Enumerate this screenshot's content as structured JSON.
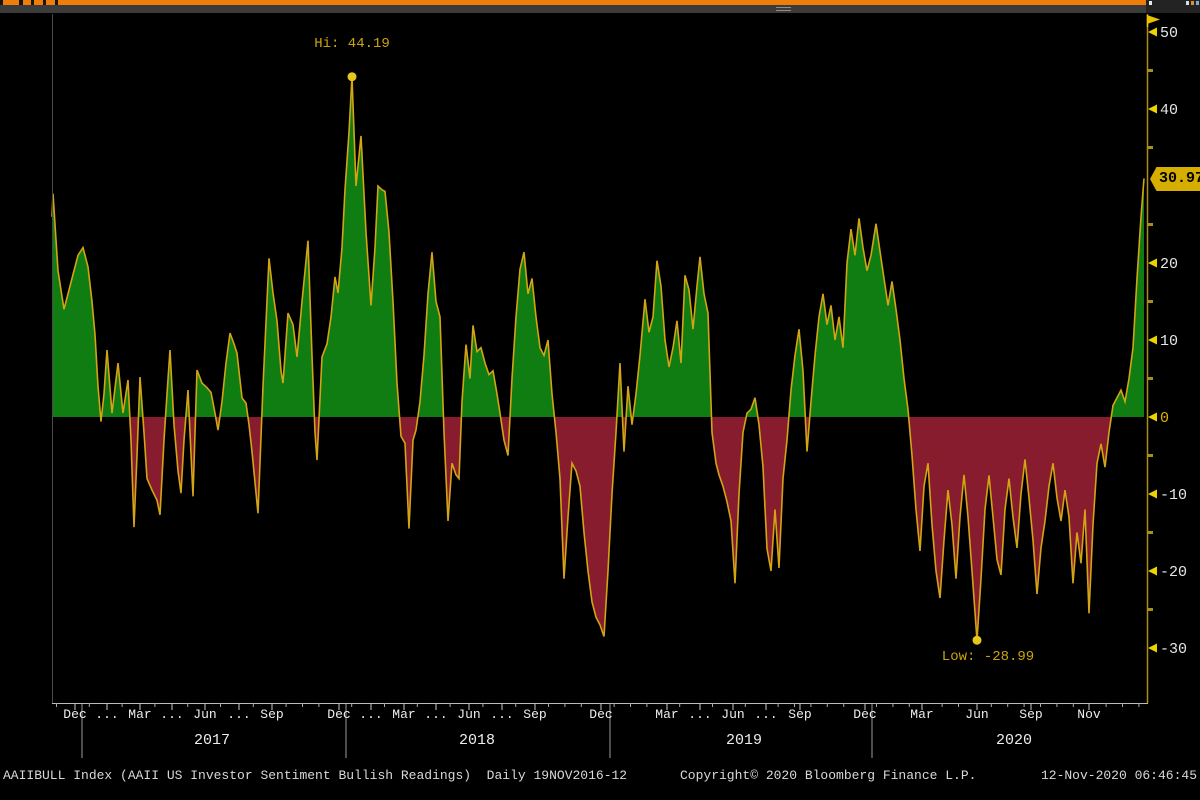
{
  "chart": {
    "hi_annotation": "Hi: 44.19",
    "low_annotation": "Low: -28.99",
    "last_value_tag": "30.97",
    "y_axis": {
      "major_ticks": [
        {
          "value": 50,
          "label": "50"
        },
        {
          "value": 40,
          "label": "40"
        },
        {
          "value": 20,
          "label": "20"
        },
        {
          "value": 10,
          "label": "10"
        },
        {
          "value": 0,
          "label": "0"
        },
        {
          "value": -10,
          "label": "-10"
        },
        {
          "value": -20,
          "label": "-20"
        },
        {
          "value": -30,
          "label": "-30"
        }
      ],
      "minor_tick_values": [
        45,
        35,
        25,
        15,
        5,
        -5,
        -15,
        -25
      ]
    },
    "x_axis": {
      "month_labels": [
        {
          "label": "Dec",
          "x": 75
        },
        {
          "label": "...",
          "x": 107
        },
        {
          "label": "Mar",
          "x": 140
        },
        {
          "label": "...",
          "x": 172
        },
        {
          "label": "Jun",
          "x": 205
        },
        {
          "label": "...",
          "x": 239
        },
        {
          "label": "Sep",
          "x": 272
        },
        {
          "label": "Dec",
          "x": 339
        },
        {
          "label": "...",
          "x": 371
        },
        {
          "label": "Mar",
          "x": 404
        },
        {
          "label": "...",
          "x": 436
        },
        {
          "label": "Jun",
          "x": 469
        },
        {
          "label": "...",
          "x": 502
        },
        {
          "label": "Sep",
          "x": 535
        },
        {
          "label": "Dec",
          "x": 601
        },
        {
          "label": "Mar",
          "x": 667
        },
        {
          "label": "...",
          "x": 700
        },
        {
          "label": "Jun",
          "x": 733
        },
        {
          "label": "...",
          "x": 766
        },
        {
          "label": "Sep",
          "x": 800
        },
        {
          "label": "Dec",
          "x": 865
        },
        {
          "label": "Mar",
          "x": 922
        },
        {
          "label": "Jun",
          "x": 977
        },
        {
          "label": "Sep",
          "x": 1031
        },
        {
          "label": "Nov",
          "x": 1089
        }
      ],
      "year_labels": [
        {
          "label": "2017",
          "x": 212
        },
        {
          "label": "2018",
          "x": 477
        },
        {
          "label": "2019",
          "x": 744
        },
        {
          "label": "2020",
          "x": 1014
        }
      ],
      "year_divider_x": [
        82,
        346,
        610,
        872
      ]
    }
  },
  "chart_data": {
    "type": "area",
    "title": "AAIIBULL Index (AAII US Investor Sentiment Bullish Readings)",
    "period": "Daily",
    "range_label": "19NOV2016-12",
    "hi": 44.19,
    "low": -28.99,
    "last": 30.97,
    "ylim": [
      -35,
      52
    ],
    "x_axis_note": "x in source pixels, 52 = 19NOV2016, 1147 = 12NOV2020, weekly readings",
    "legend_position": "none",
    "grid": false,
    "series": [
      {
        "name": "AAIIBULL Index (AAII US Investor Sentiment Bullish Readings)",
        "points": [
          [
            52,
            26
          ],
          [
            53,
            29
          ],
          [
            58,
            19
          ],
          [
            64,
            14
          ],
          [
            68,
            16
          ],
          [
            73,
            18.5
          ],
          [
            78,
            21
          ],
          [
            83,
            22
          ],
          [
            88,
            19.5
          ],
          [
            92,
            15
          ],
          [
            95,
            10.7
          ],
          [
            98,
            4
          ],
          [
            101,
            -0.6
          ],
          [
            104,
            3
          ],
          [
            107,
            8.7
          ],
          [
            112,
            0.5
          ],
          [
            118,
            7
          ],
          [
            123,
            0.5
          ],
          [
            128,
            4.8
          ],
          [
            131,
            -3
          ],
          [
            134,
            -14.3
          ],
          [
            137,
            -5
          ],
          [
            140,
            5.2
          ],
          [
            144,
            -2
          ],
          [
            147,
            -8
          ],
          [
            152,
            -9.5
          ],
          [
            157,
            -10.8
          ],
          [
            160,
            -12.7
          ],
          [
            164,
            -3
          ],
          [
            167,
            3
          ],
          [
            170,
            8.7
          ],
          [
            174,
            -1
          ],
          [
            178,
            -7
          ],
          [
            181,
            -9.9
          ],
          [
            184,
            -3
          ],
          [
            188,
            3.5
          ],
          [
            190,
            -2
          ],
          [
            193,
            -10.3
          ],
          [
            197,
            6.1
          ],
          [
            202,
            4.4
          ],
          [
            207,
            3.8
          ],
          [
            211,
            3.2
          ],
          [
            215,
            0.5
          ],
          [
            218,
            -1.7
          ],
          [
            222,
            2
          ],
          [
            226,
            7
          ],
          [
            230,
            10.9
          ],
          [
            234,
            9.5
          ],
          [
            237,
            8.3
          ],
          [
            242,
            2.5
          ],
          [
            246,
            1.8
          ],
          [
            249,
            -1
          ],
          [
            252,
            -4.5
          ],
          [
            258,
            -12.5
          ],
          [
            263,
            4
          ],
          [
            269,
            20.6
          ],
          [
            273,
            16.1
          ],
          [
            277,
            12.5
          ],
          [
            281,
            6
          ],
          [
            283,
            4.4
          ],
          [
            288,
            13.5
          ],
          [
            293,
            12
          ],
          [
            297,
            7.8
          ],
          [
            302,
            15
          ],
          [
            308,
            22.9
          ],
          [
            312,
            8
          ],
          [
            315,
            -2
          ],
          [
            317,
            -5.6
          ],
          [
            322,
            7.8
          ],
          [
            327,
            9.5
          ],
          [
            331,
            13
          ],
          [
            335,
            18.2
          ],
          [
            338,
            16.1
          ],
          [
            342,
            22
          ],
          [
            345,
            29.5
          ],
          [
            349,
            37
          ],
          [
            352,
            44.19
          ],
          [
            356,
            30
          ],
          [
            361,
            36.5
          ],
          [
            366,
            24
          ],
          [
            371,
            14.5
          ],
          [
            375,
            22
          ],
          [
            378,
            30
          ],
          [
            382,
            29.5
          ],
          [
            385,
            29.3
          ],
          [
            389,
            24
          ],
          [
            393,
            15
          ],
          [
            397,
            4.4
          ],
          [
            401,
            -2.5
          ],
          [
            405,
            -3.4
          ],
          [
            409,
            -14.5
          ],
          [
            413,
            -3
          ],
          [
            416,
            -1.7
          ],
          [
            420,
            2
          ],
          [
            424,
            8
          ],
          [
            428,
            16
          ],
          [
            432,
            21.4
          ],
          [
            436,
            15
          ],
          [
            440,
            13
          ],
          [
            444,
            -2
          ],
          [
            448,
            -13.5
          ],
          [
            452,
            -6
          ],
          [
            456,
            -7.5
          ],
          [
            459,
            -8
          ],
          [
            462,
            2
          ],
          [
            466,
            9.4
          ],
          [
            470,
            5
          ],
          [
            473,
            11.9
          ],
          [
            477,
            8.5
          ],
          [
            481,
            9
          ],
          [
            485,
            7
          ],
          [
            489,
            5.5
          ],
          [
            493,
            6
          ],
          [
            497,
            3
          ],
          [
            500,
            0.5
          ],
          [
            504,
            -3
          ],
          [
            508,
            -5
          ],
          [
            512,
            5
          ],
          [
            516,
            13
          ],
          [
            520,
            19.2
          ],
          [
            524,
            21.4
          ],
          [
            528,
            16
          ],
          [
            532,
            18
          ],
          [
            536,
            13
          ],
          [
            540,
            9
          ],
          [
            544,
            8
          ],
          [
            548,
            10
          ],
          [
            552,
            3
          ],
          [
            556,
            -2
          ],
          [
            560,
            -8
          ],
          [
            564,
            -21
          ],
          [
            568,
            -13
          ],
          [
            572,
            -6
          ],
          [
            576,
            -7
          ],
          [
            580,
            -9
          ],
          [
            584,
            -15
          ],
          [
            588,
            -20
          ],
          [
            592,
            -24
          ],
          [
            596,
            -26
          ],
          [
            600,
            -27
          ],
          [
            604,
            -28.5
          ],
          [
            608,
            -20
          ],
          [
            612,
            -10
          ],
          [
            616,
            -2
          ],
          [
            620,
            7
          ],
          [
            624,
            -4.5
          ],
          [
            628,
            4
          ],
          [
            632,
            -1
          ],
          [
            636,
            3
          ],
          [
            640,
            8
          ],
          [
            645,
            15.3
          ],
          [
            649,
            11
          ],
          [
            653,
            13
          ],
          [
            657,
            20.3
          ],
          [
            661,
            17
          ],
          [
            665,
            10
          ],
          [
            669,
            6.5
          ],
          [
            673,
            9
          ],
          [
            677,
            12.5
          ],
          [
            681,
            7
          ],
          [
            685,
            18.4
          ],
          [
            689,
            16.5
          ],
          [
            693,
            11.4
          ],
          [
            697,
            17
          ],
          [
            700,
            20.8
          ],
          [
            704,
            16
          ],
          [
            708,
            13.5
          ],
          [
            712,
            -2
          ],
          [
            716,
            -6
          ],
          [
            719,
            -7.5
          ],
          [
            723,
            -9
          ],
          [
            727,
            -11
          ],
          [
            731,
            -13.5
          ],
          [
            735,
            -21.6
          ],
          [
            739,
            -10
          ],
          [
            743,
            -2
          ],
          [
            747,
            0.5
          ],
          [
            751,
            1
          ],
          [
            755,
            2.5
          ],
          [
            759,
            -1
          ],
          [
            763,
            -6.5
          ],
          [
            767,
            -17.1
          ],
          [
            771,
            -20
          ],
          [
            775,
            -12
          ],
          [
            779,
            -19.6
          ],
          [
            783,
            -8
          ],
          [
            787,
            -3
          ],
          [
            791,
            3.5
          ],
          [
            795,
            8
          ],
          [
            799,
            11.4
          ],
          [
            803,
            6
          ],
          [
            807,
            -4.5
          ],
          [
            811,
            2
          ],
          [
            815,
            8
          ],
          [
            819,
            13
          ],
          [
            823,
            16
          ],
          [
            827,
            12
          ],
          [
            831,
            14.5
          ],
          [
            835,
            10
          ],
          [
            839,
            13
          ],
          [
            843,
            9
          ],
          [
            847,
            20
          ],
          [
            851,
            24.4
          ],
          [
            855,
            21
          ],
          [
            859,
            25.8
          ],
          [
            863,
            22
          ],
          [
            867,
            19
          ],
          [
            871,
            21
          ],
          [
            876,
            25.1
          ],
          [
            880,
            21.5
          ],
          [
            884,
            18
          ],
          [
            888,
            14.5
          ],
          [
            892,
            17.6
          ],
          [
            896,
            14
          ],
          [
            900,
            10
          ],
          [
            904,
            5
          ],
          [
            908,
            1
          ],
          [
            912,
            -5
          ],
          [
            916,
            -12
          ],
          [
            920,
            -17.4
          ],
          [
            924,
            -9
          ],
          [
            928,
            -6
          ],
          [
            932,
            -14
          ],
          [
            936,
            -20
          ],
          [
            940,
            -23.5
          ],
          [
            944,
            -16
          ],
          [
            948,
            -9.5
          ],
          [
            952,
            -14
          ],
          [
            956,
            -21
          ],
          [
            960,
            -13
          ],
          [
            964,
            -7.5
          ],
          [
            968,
            -13
          ],
          [
            972,
            -20
          ],
          [
            977,
            -28.99
          ],
          [
            981,
            -21
          ],
          [
            985,
            -12
          ],
          [
            989,
            -7.6
          ],
          [
            993,
            -13
          ],
          [
            997,
            -18.5
          ],
          [
            1001,
            -20.5
          ],
          [
            1005,
            -12
          ],
          [
            1009,
            -8
          ],
          [
            1013,
            -13
          ],
          [
            1017,
            -17
          ],
          [
            1021,
            -10
          ],
          [
            1025,
            -5.5
          ],
          [
            1029,
            -10.5
          ],
          [
            1033,
            -16
          ],
          [
            1037,
            -23
          ],
          [
            1041,
            -17
          ],
          [
            1045,
            -13.5
          ],
          [
            1049,
            -9
          ],
          [
            1053,
            -6
          ],
          [
            1057,
            -10.5
          ],
          [
            1061,
            -13.5
          ],
          [
            1065,
            -9.5
          ],
          [
            1069,
            -13
          ],
          [
            1073,
            -21.6
          ],
          [
            1077,
            -15
          ],
          [
            1081,
            -19
          ],
          [
            1085,
            -12
          ],
          [
            1089,
            -25.5
          ],
          [
            1093,
            -14
          ],
          [
            1097,
            -6
          ],
          [
            1101,
            -3.5
          ],
          [
            1105,
            -6.5
          ],
          [
            1109,
            -2
          ],
          [
            1113,
            1.5
          ],
          [
            1117,
            2.5
          ],
          [
            1121,
            3.5
          ],
          [
            1125,
            2
          ],
          [
            1129,
            5
          ],
          [
            1133,
            9
          ],
          [
            1137,
            18
          ],
          [
            1141,
            26
          ],
          [
            1144,
            30.97
          ]
        ]
      }
    ],
    "colors": {
      "positive_fill": "#0f7d12",
      "negative_fill": "#871c2e",
      "line": "#d3a413",
      "marker": "#e6c619",
      "background": "#000000",
      "accent_orange": "#ef7d0a",
      "tag_background": "#d6ae00",
      "axis_amber": "#a98f14"
    }
  },
  "statusbar": {
    "left": "AAIIBULL Index (AAII US Investor Sentiment Bullish Readings)  Daily 19NOV2016-12",
    "center": "Copyright© 2020 Bloomberg Finance L.P.",
    "right": "12-Nov-2020 06:46:45"
  }
}
